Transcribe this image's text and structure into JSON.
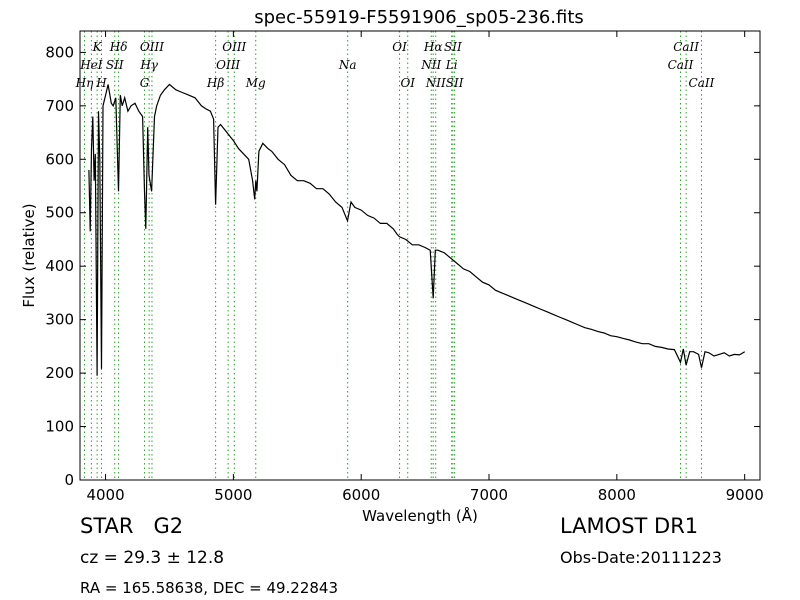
{
  "info": {
    "class_label": "STAR   G2",
    "survey": "LAMOST DR1",
    "cz": "cz = 29.3 ± 12.8",
    "obs_date": "Obs-Date:20111223",
    "radec": "RA = 165.58638, DEC = 49.22843"
  },
  "chart_data": {
    "type": "line",
    "title": "spec-55919-F5591906_sp05-236.fits",
    "xlabel": "Wavelength (Å)",
    "ylabel": "Flux (relative)",
    "xlim": [
      3800,
      9120
    ],
    "ylim": [
      0,
      840
    ],
    "xticks": [
      4000,
      5000,
      6000,
      7000,
      8000,
      9000
    ],
    "yticks": [
      0,
      100,
      200,
      300,
      400,
      500,
      600,
      700,
      800
    ],
    "grid": false,
    "line_color": "#000000",
    "marker_color": "#2ca02c",
    "spectrum": {
      "x": [
        3870,
        3880,
        3890,
        3900,
        3910,
        3920,
        3934,
        3945,
        3955,
        3968,
        3980,
        4000,
        4020,
        4045,
        4060,
        4080,
        4101,
        4115,
        4130,
        4150,
        4175,
        4200,
        4230,
        4260,
        4290,
        4305,
        4315,
        4330,
        4340,
        4360,
        4383,
        4400,
        4430,
        4460,
        4500,
        4550,
        4600,
        4650,
        4700,
        4750,
        4780,
        4820,
        4845,
        4861,
        4880,
        4900,
        4950,
        5000,
        5040,
        5080,
        5120,
        5150,
        5167,
        5175,
        5184,
        5200,
        5230,
        5270,
        5300,
        5350,
        5400,
        5450,
        5500,
        5550,
        5600,
        5650,
        5700,
        5750,
        5800,
        5850,
        5893,
        5920,
        5950,
        6000,
        6050,
        6100,
        6150,
        6200,
        6250,
        6280,
        6300,
        6350,
        6400,
        6450,
        6500,
        6540,
        6563,
        6580,
        6600,
        6650,
        6700,
        6750,
        6800,
        6850,
        6900,
        6950,
        7000,
        7050,
        7100,
        7150,
        7200,
        7250,
        7300,
        7350,
        7400,
        7450,
        7500,
        7550,
        7600,
        7650,
        7700,
        7750,
        7800,
        7850,
        7900,
        7950,
        8000,
        8050,
        8100,
        8150,
        8200,
        8250,
        8300,
        8350,
        8400,
        8450,
        8498,
        8520,
        8542,
        8570,
        8600,
        8640,
        8662,
        8690,
        8720,
        8760,
        8800,
        8840,
        8880,
        8920,
        8960,
        9000
      ],
      "y": [
        580,
        465,
        620,
        680,
        560,
        610,
        195,
        690,
        600,
        208,
        700,
        720,
        740,
        705,
        700,
        715,
        540,
        720,
        700,
        715,
        690,
        700,
        705,
        690,
        680,
        540,
        470,
        660,
        570,
        540,
        680,
        700,
        720,
        730,
        740,
        730,
        725,
        720,
        715,
        700,
        695,
        690,
        675,
        515,
        660,
        665,
        650,
        635,
        620,
        610,
        600,
        560,
        525,
        560,
        540,
        615,
        630,
        620,
        615,
        600,
        590,
        570,
        560,
        560,
        555,
        545,
        545,
        535,
        520,
        510,
        485,
        520,
        510,
        505,
        495,
        490,
        480,
        480,
        470,
        460,
        455,
        450,
        440,
        440,
        435,
        430,
        340,
        430,
        430,
        425,
        415,
        405,
        395,
        390,
        380,
        370,
        365,
        355,
        350,
        345,
        340,
        335,
        330,
        325,
        320,
        315,
        310,
        305,
        300,
        295,
        290,
        285,
        282,
        278,
        275,
        270,
        268,
        265,
        262,
        258,
        255,
        255,
        250,
        248,
        245,
        244,
        220,
        245,
        215,
        240,
        240,
        235,
        210,
        240,
        238,
        232,
        235,
        238,
        232,
        235,
        234,
        240
      ]
    },
    "lines": [
      {
        "name": "Hη",
        "wl": 3835,
        "row": 3
      },
      {
        "name": "HeI",
        "wl": 3889,
        "row": 2
      },
      {
        "name": "K",
        "wl": 3934,
        "row": 1
      },
      {
        "name": "H",
        "wl": 3968,
        "row": 3
      },
      {
        "name": "SII",
        "wl": 4072,
        "row": 2
      },
      {
        "name": "Hδ",
        "wl": 4102,
        "row": 1
      },
      {
        "name": "G",
        "wl": 4305,
        "row": 3
      },
      {
        "name": "Hγ",
        "wl": 4341,
        "row": 2
      },
      {
        "name": "OIII",
        "wl": 4363,
        "row": 1
      },
      {
        "name": "Hβ",
        "wl": 4861,
        "row": 3
      },
      {
        "name": "OIII",
        "wl": 4959,
        "row": 2
      },
      {
        "name": "OIII",
        "wl": 5007,
        "row": 1
      },
      {
        "name": "Mg",
        "wl": 5175,
        "row": 3
      },
      {
        "name": "Na",
        "wl": 5894,
        "row": 2
      },
      {
        "name": "OI",
        "wl": 6300,
        "row": 1
      },
      {
        "name": "OI",
        "wl": 6364,
        "row": 3
      },
      {
        "name": "NII",
        "wl": 6548,
        "row": 2
      },
      {
        "name": "Hα",
        "wl": 6563,
        "row": 1
      },
      {
        "name": "NII",
        "wl": 6583,
        "row": 3
      },
      {
        "name": "Li",
        "wl": 6708,
        "row": 2
      },
      {
        "name": "SII",
        "wl": 6717,
        "row": 1
      },
      {
        "name": "SII",
        "wl": 6731,
        "row": 3
      },
      {
        "name": "CaII",
        "wl": 8498,
        "row": 2
      },
      {
        "name": "CaII",
        "wl": 8542,
        "row": 1
      },
      {
        "name": "CaII",
        "wl": 8662,
        "row": 3
      }
    ]
  }
}
